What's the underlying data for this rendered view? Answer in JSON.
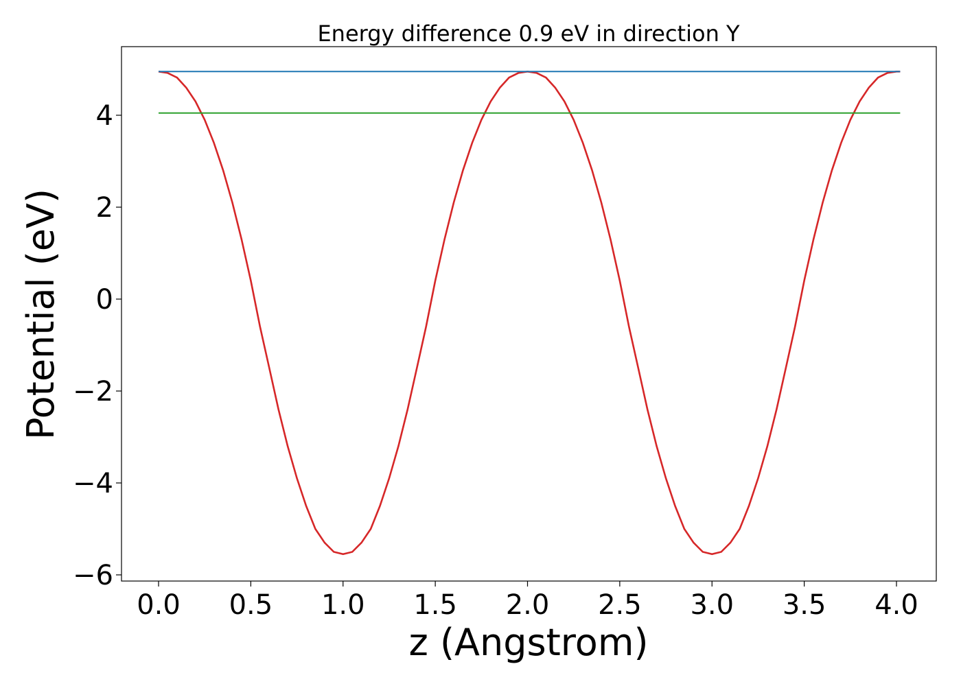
{
  "chart_data": {
    "type": "line",
    "title": "Energy difference 0.9 eV in direction Y",
    "xlabel": "z (Angstrom)",
    "ylabel": "Potential (eV)",
    "xlim": [
      -0.4,
      4.02
    ],
    "ylim": [
      -6.15,
      5.5
    ],
    "xticks": [
      0.0,
      0.5,
      1.0,
      1.5,
      2.0,
      2.5,
      3.0,
      3.5,
      4.0
    ],
    "xtick_labels": [
      "0.0",
      "0.5",
      "1.0",
      "1.5",
      "2.0",
      "2.5",
      "3.0",
      "3.5",
      "4.0"
    ],
    "yticks": [
      -6,
      -4,
      -2,
      0,
      2,
      4
    ],
    "ytick_labels": [
      "−6",
      "−4",
      "−2",
      "0",
      "2",
      "4"
    ],
    "grid": false,
    "legend": "none",
    "series": [
      {
        "color": "#d62728",
        "x": [
          0.0,
          0.05,
          0.1,
          0.15,
          0.2,
          0.25,
          0.3,
          0.35,
          0.4,
          0.45,
          0.5,
          0.55,
          0.6,
          0.65,
          0.7,
          0.75,
          0.8,
          0.85,
          0.9,
          0.95,
          1.0,
          1.05,
          1.1,
          1.15,
          1.2,
          1.25,
          1.3,
          1.35,
          1.4,
          1.45,
          1.5,
          1.55,
          1.6,
          1.65,
          1.7,
          1.75,
          1.8,
          1.85,
          1.9,
          1.95,
          2.0,
          2.05,
          2.1,
          2.15,
          2.2,
          2.25,
          2.3,
          2.35,
          2.4,
          2.45,
          2.5,
          2.55,
          2.6,
          2.65,
          2.7,
          2.75,
          2.8,
          2.85,
          2.9,
          2.95,
          3.0,
          3.05,
          3.1,
          3.15,
          3.2,
          3.25,
          3.3,
          3.35,
          3.4,
          3.45,
          3.5,
          3.55,
          3.6,
          3.65,
          3.7,
          3.75,
          3.8,
          3.85,
          3.9,
          3.95,
          4.0,
          4.02
        ],
        "y": [
          4.95,
          4.92,
          4.82,
          4.6,
          4.3,
          3.9,
          3.4,
          2.8,
          2.1,
          1.3,
          0.4,
          -0.6,
          -1.5,
          -2.4,
          -3.2,
          -3.9,
          -4.5,
          -5.0,
          -5.3,
          -5.5,
          -5.55,
          -5.5,
          -5.3,
          -5.0,
          -4.5,
          -3.9,
          -3.2,
          -2.4,
          -1.5,
          -0.6,
          0.4,
          1.3,
          2.1,
          2.8,
          3.4,
          3.9,
          4.3,
          4.6,
          4.82,
          4.92,
          4.95,
          4.92,
          4.82,
          4.6,
          4.3,
          3.9,
          3.4,
          2.8,
          2.1,
          1.3,
          0.4,
          -0.6,
          -1.5,
          -2.4,
          -3.2,
          -3.9,
          -4.5,
          -5.0,
          -5.3,
          -5.5,
          -5.55,
          -5.5,
          -5.3,
          -5.0,
          -4.5,
          -3.9,
          -3.2,
          -2.4,
          -1.5,
          -0.6,
          0.4,
          1.3,
          2.1,
          2.8,
          3.4,
          3.9,
          4.3,
          4.6,
          4.82,
          4.92,
          4.95,
          4.95
        ]
      },
      {
        "color": "#1f77b4",
        "x": [
          0.0,
          4.02
        ],
        "y": [
          4.95,
          4.95
        ]
      },
      {
        "color": "#2ca02c",
        "x": [
          0.0,
          4.02
        ],
        "y": [
          4.05,
          4.05
        ]
      }
    ]
  }
}
